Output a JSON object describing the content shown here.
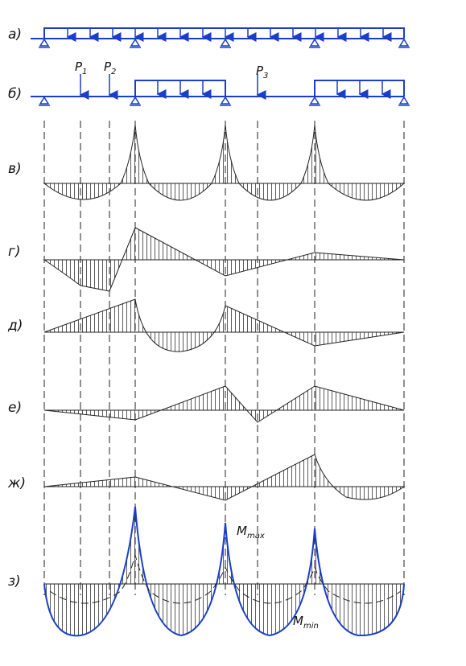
{
  "labels": [
    "а)",
    "б)",
    "в)",
    "г)",
    "д)",
    "е)",
    "ж)",
    "з)"
  ],
  "forces": [
    {
      "name": "P",
      "sub": "1"
    },
    {
      "name": "P",
      "sub": "2"
    },
    {
      "name": "P",
      "sub": "3"
    }
  ],
  "moments": [
    {
      "name": "M",
      "sub": "max"
    },
    {
      "name": "M",
      "sub": "min"
    }
  ]
}
